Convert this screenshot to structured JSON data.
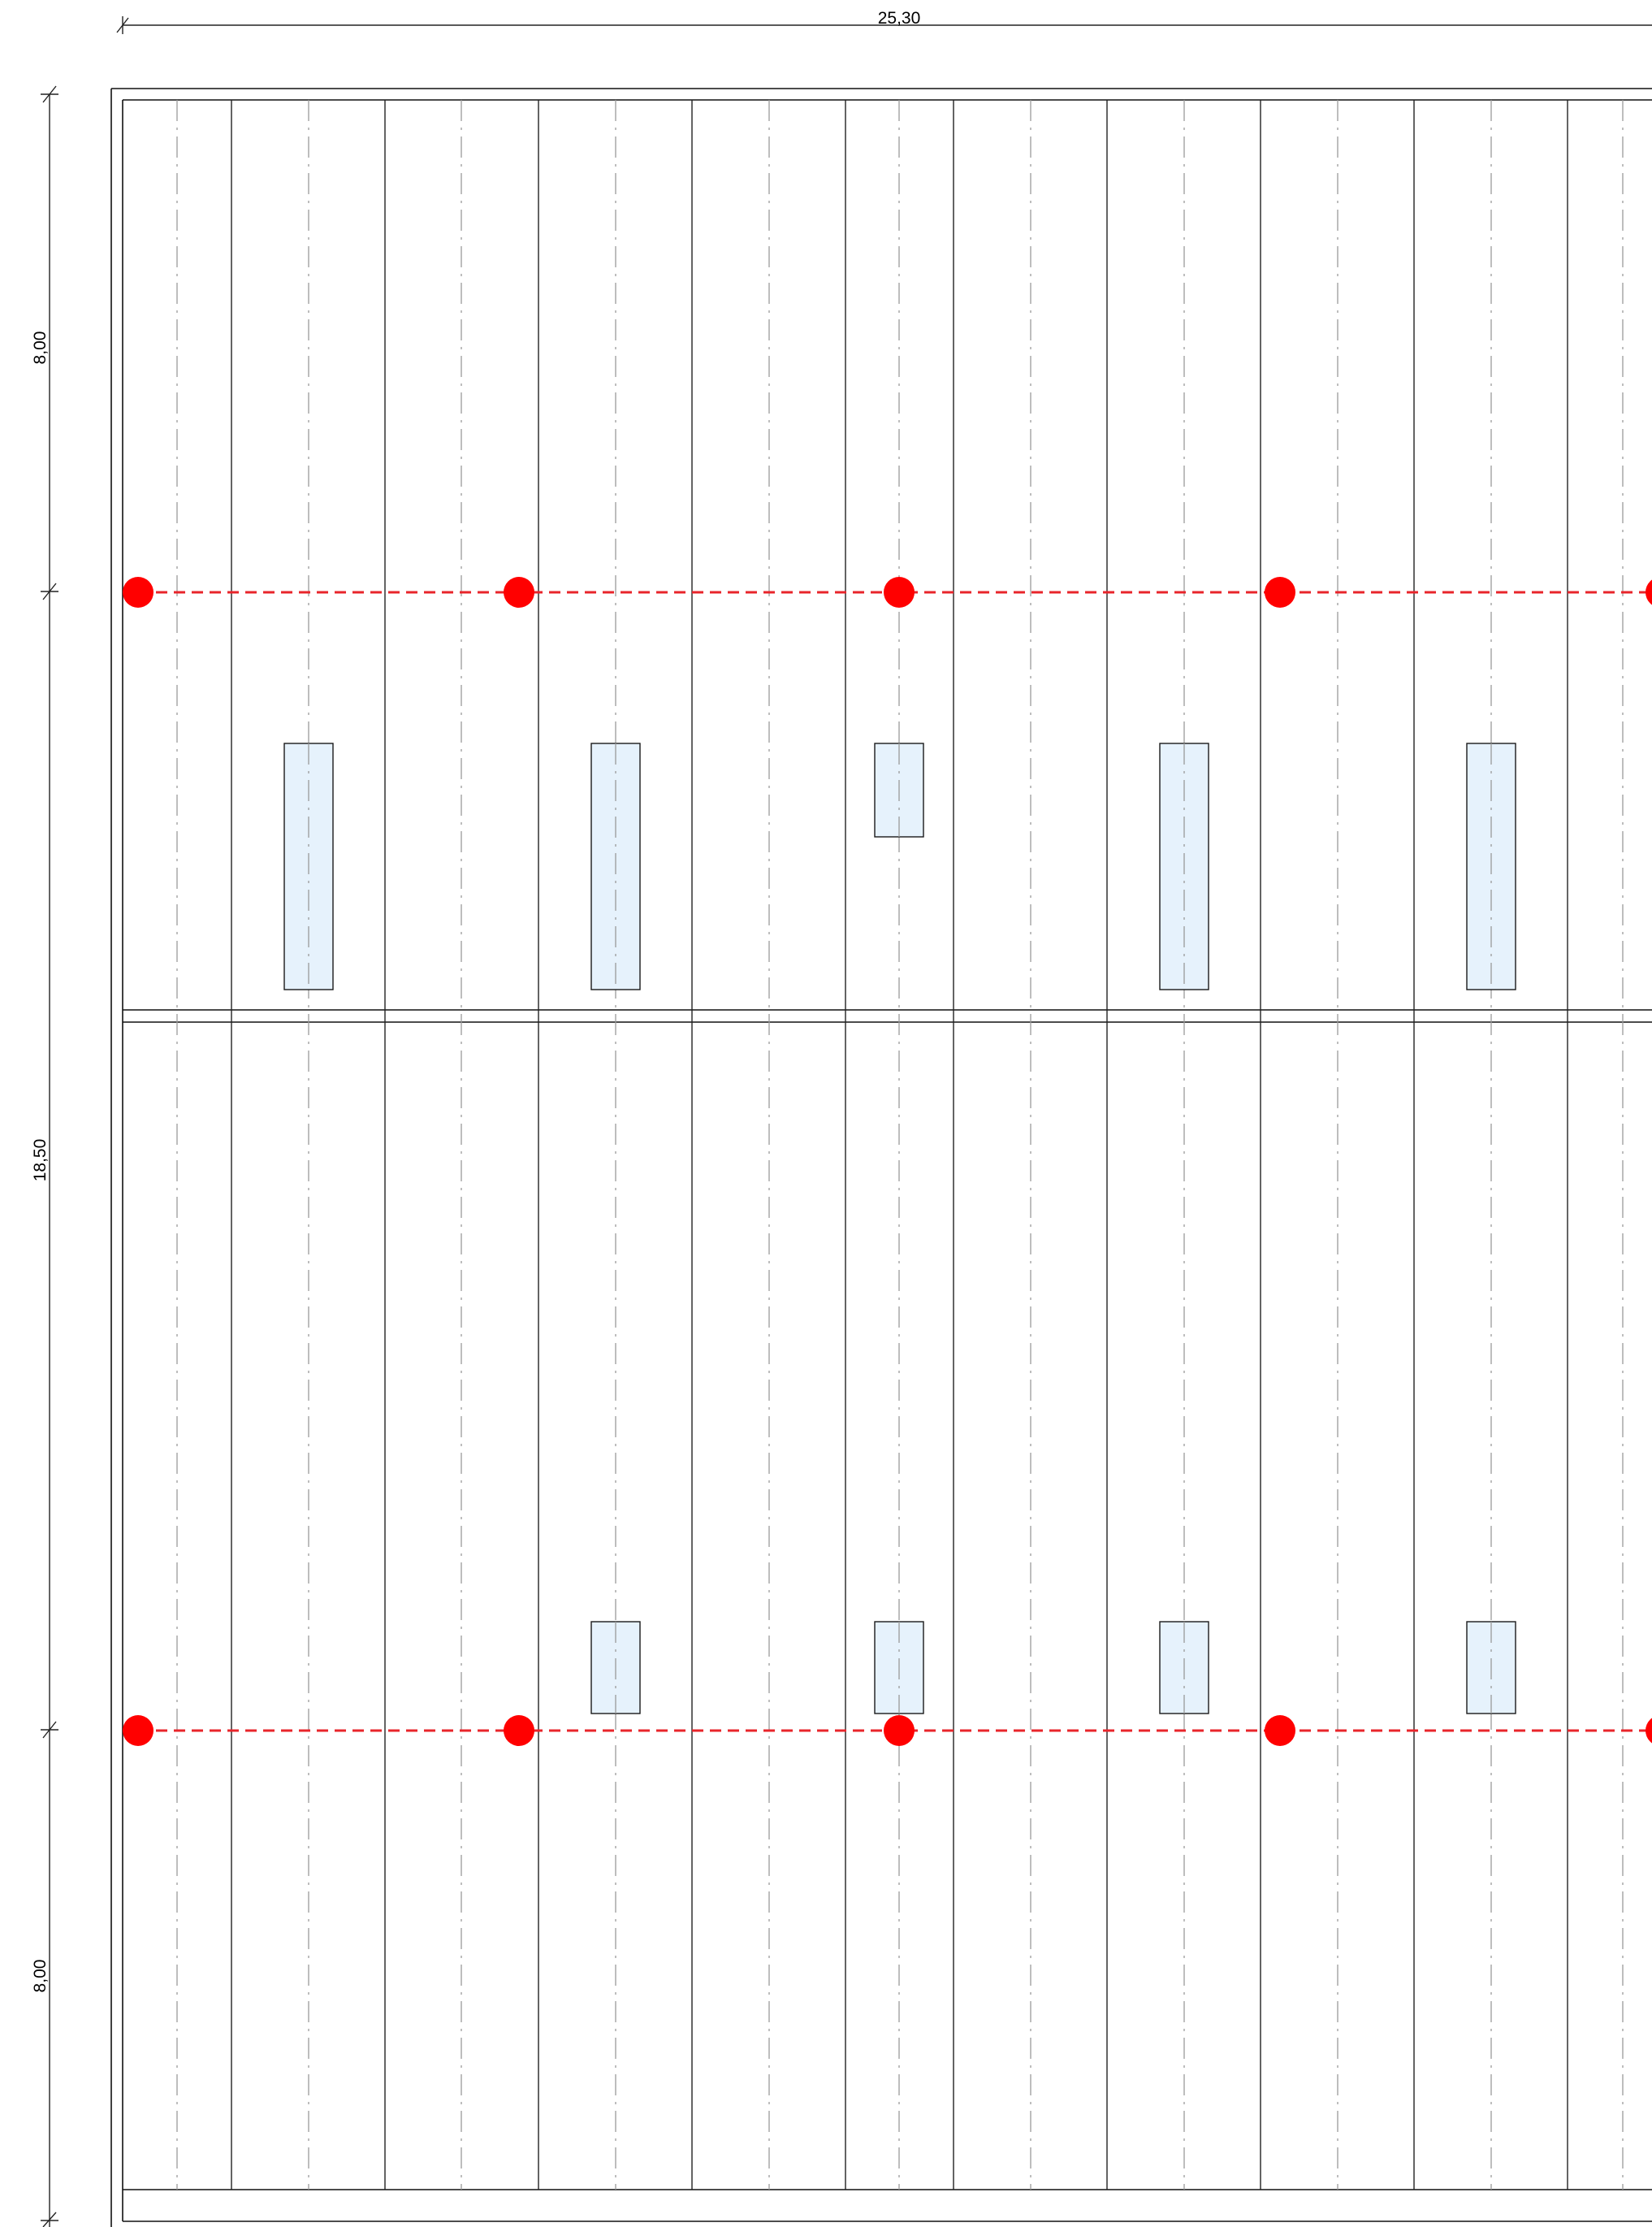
{
  "drawing": {
    "colors": {
      "line": "#222222",
      "axis_line": "#9a9a9a",
      "safety_line": "#e8252b",
      "anchor_point": "#ff0000",
      "skylight_fill": "#e6f2fc"
    },
    "dimensions": {
      "overall_width": "25,30",
      "top_span": "8,00",
      "middle_span": "18,50",
      "bottom_span": "8,00"
    },
    "anchor_rows": [
      {
        "name": "upper",
        "count_visible": 5
      },
      {
        "name": "lower",
        "count_visible": 5
      }
    ],
    "skylights": {
      "upper_row": [
        "long",
        "long",
        "short",
        "long",
        "long"
      ],
      "lower_row": [
        "short",
        "short",
        "short",
        "short"
      ]
    }
  }
}
